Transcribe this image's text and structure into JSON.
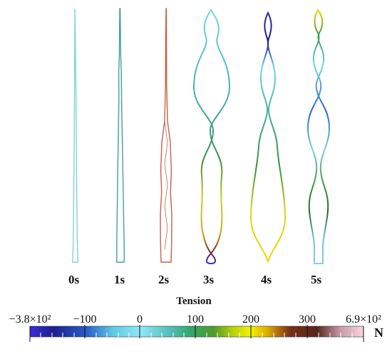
{
  "frames": [
    {
      "label": "0s"
    },
    {
      "label": "1s"
    },
    {
      "label": "2s"
    },
    {
      "label": "3s"
    },
    {
      "label": "4s"
    },
    {
      "label": "5s"
    }
  ],
  "legend": {
    "title": "Tension",
    "unit": "N",
    "min_label": "−3.8×10²",
    "max_label": "6.9×10²",
    "ticks": [
      "−100",
      "0",
      "100",
      "200",
      "300"
    ],
    "min_value": -380,
    "max_value": 690,
    "tick_values": [
      -100,
      0,
      100,
      200,
      300
    ],
    "colormap": [
      "#3b2bd6",
      "#1d1f8c",
      "#2a5ec8",
      "#5fc9e6",
      "#8fe8f7",
      "#58c3c0",
      "#33a86d",
      "#4e9a2a",
      "#b7d20e",
      "#f2f200",
      "#e0b000",
      "#7a2d1a",
      "#55261a",
      "#f7d6dc"
    ]
  },
  "colors": {
    "frame0": "#7fd3d6",
    "frame1": "#3fa58a",
    "frame2": "#c4614a"
  }
}
